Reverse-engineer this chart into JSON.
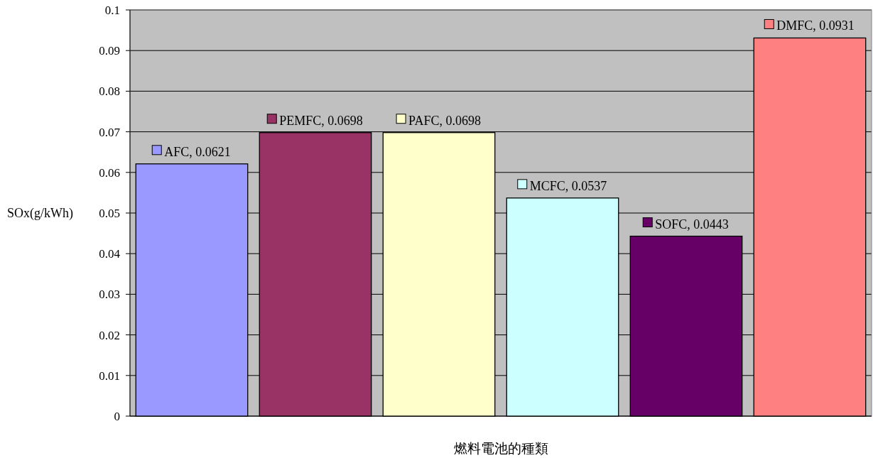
{
  "chart_data": {
    "type": "bar",
    "xlabel": "燃料電池的種類",
    "ylabel": "SOx(g/kWh)",
    "categories": [
      null,
      null,
      null,
      null,
      null,
      null
    ],
    "values": [
      0.0621,
      0.0698,
      0.0698,
      0.0537,
      0.0443,
      0.0931
    ],
    "colors": [
      "#9999ff",
      "#993366",
      "#ffffcc",
      "#ccffff",
      "#660066",
      "#ff8080"
    ],
    "value_labels": [
      "AFC, 0.0621",
      "PEMFC, 0.0698",
      "PAFC, 0.0698",
      "MCFC, 0.0537",
      "SOFC, 0.0443",
      "DMFC, 0.0931"
    ],
    "ylim": [
      0,
      0.1
    ],
    "yticks": [
      0,
      0.01,
      0.02,
      0.03,
      0.04,
      0.05,
      0.06,
      0.07,
      0.08,
      0.09,
      0.1
    ],
    "grid": "y"
  }
}
